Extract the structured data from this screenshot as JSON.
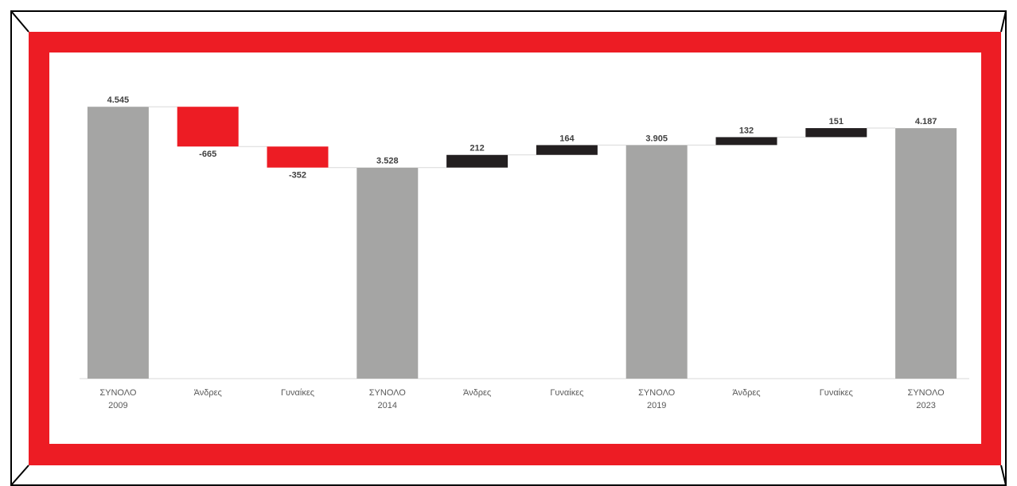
{
  "chart_data": {
    "type": "waterfall",
    "categories": [
      [
        "ΣΥΝΟΛΟ",
        "2009"
      ],
      [
        "Άνδρες"
      ],
      [
        "Γυναίκες"
      ],
      [
        "ΣΥΝΟΛΟ",
        "2014"
      ],
      [
        "Άνδρες"
      ],
      [
        "Γυναίκες"
      ],
      [
        "ΣΥΝΟΛΟ",
        "2019"
      ],
      [
        "Άνδρες"
      ],
      [
        "Γυναίκες"
      ],
      [
        "ΣΥΝΟΛΟ",
        "2023"
      ]
    ],
    "values": [
      4545,
      -665,
      -352,
      3528,
      212,
      164,
      3905,
      132,
      151,
      4187
    ],
    "value_labels": [
      "4.545",
      "-665",
      "-352",
      "3.528",
      "212",
      "164",
      "3.905",
      "132",
      "151",
      "4.187"
    ],
    "totals": [
      true,
      false,
      false,
      true,
      false,
      false,
      true,
      false,
      false,
      true
    ],
    "colors": {
      "total": "#a5a5a4",
      "increase": "#231f20",
      "decrease": "#ed1c24"
    },
    "ylim": [
      0,
      5000
    ]
  }
}
